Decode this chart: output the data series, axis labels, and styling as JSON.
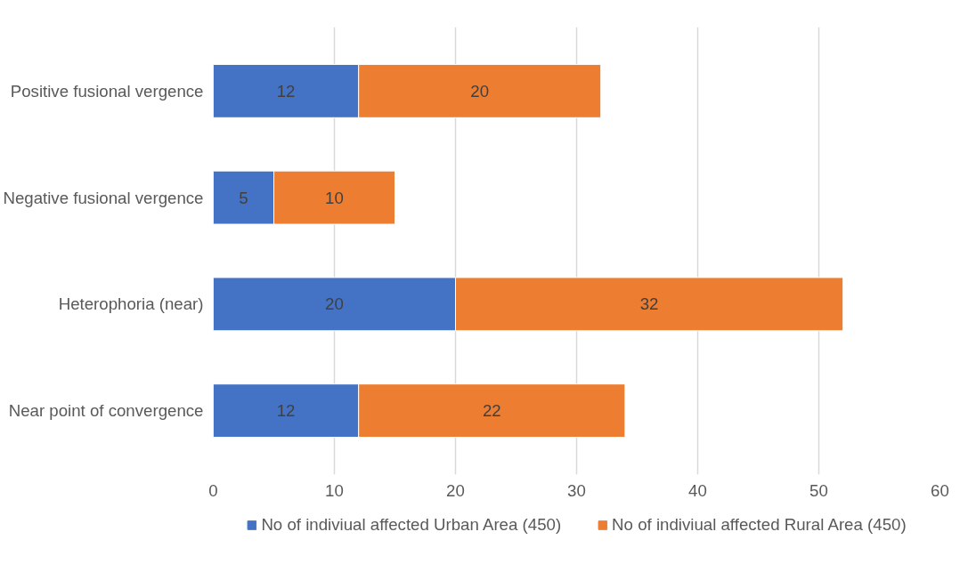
{
  "chart_data": {
    "type": "bar",
    "orientation": "horizontal",
    "stacked": true,
    "categories": [
      "Positive fusional vergence",
      "Negative fusional vergence",
      "Heterophoria (near)",
      "Near point of convergence"
    ],
    "series": [
      {
        "name": "No of indiviual affected Urban Area (450)",
        "color": "#4472c4",
        "values": [
          12,
          5,
          20,
          12
        ]
      },
      {
        "name": "No of indiviual affected Rural Area (450)",
        "color": "#ed7d31",
        "values": [
          20,
          10,
          32,
          22
        ]
      }
    ],
    "xlim": [
      0,
      60
    ],
    "xticks": [
      0,
      10,
      20,
      30,
      40,
      50,
      60
    ],
    "grid": "x",
    "legend": "bottom",
    "data_labels": true
  }
}
